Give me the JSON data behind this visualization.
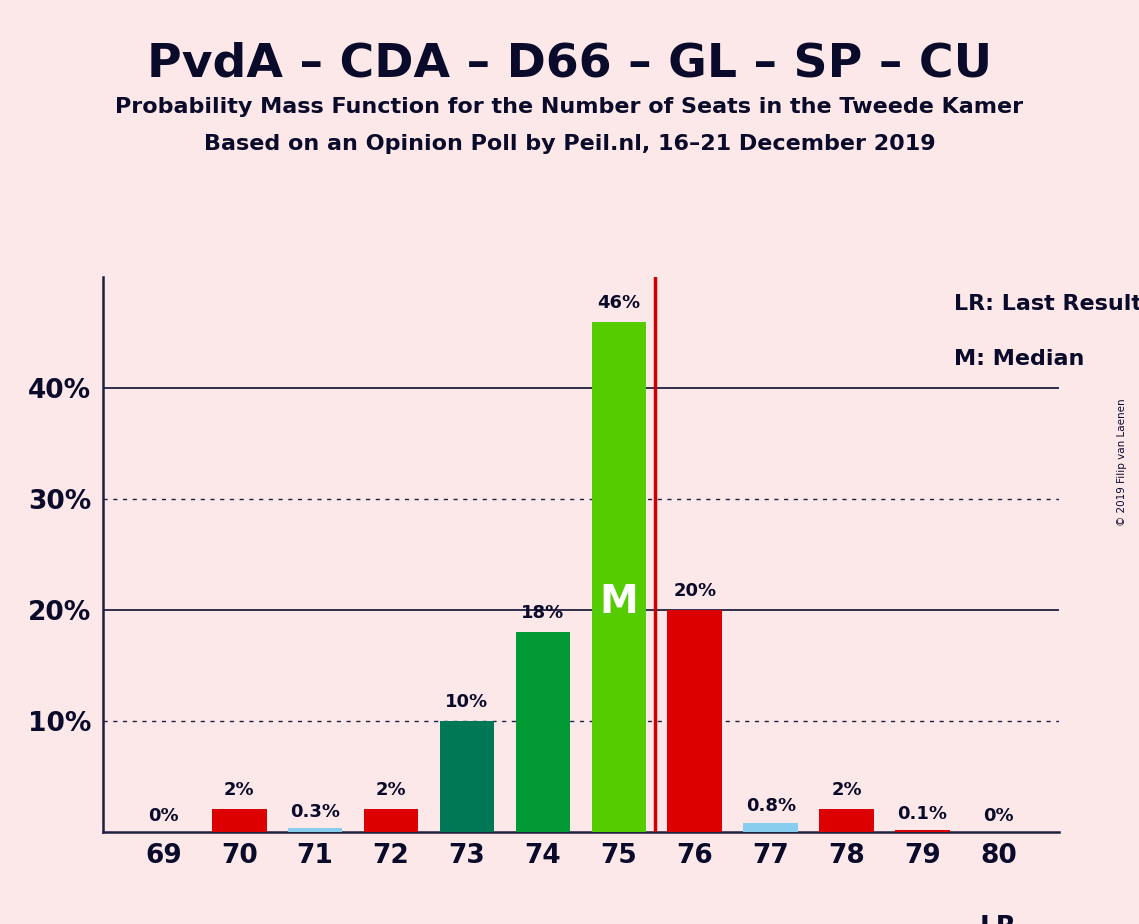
{
  "title": "PvdA – CDA – D66 – GL – SP – CU",
  "subtitle1": "Probability Mass Function for the Number of Seats in the Tweede Kamer",
  "subtitle2": "Based on an Opinion Poll by Peil.nl, 16–21 December 2019",
  "copyright": "© 2019 Filip van Laenen",
  "categories": [
    69,
    70,
    71,
    72,
    73,
    74,
    75,
    76,
    77,
    78,
    79,
    80
  ],
  "values": [
    0.0,
    2.0,
    0.3,
    2.0,
    10.0,
    18.0,
    46.0,
    20.0,
    0.8,
    2.0,
    0.1,
    0.0
  ],
  "bar_colors": [
    "#dd0000",
    "#dd0000",
    "#88ccee",
    "#dd0000",
    "#007755",
    "#009933",
    "#55cc00",
    "#dd0000",
    "#88ccee",
    "#dd0000",
    "#dd0000",
    "#dd0000"
  ],
  "labels": [
    "0%",
    "2%",
    "0.3%",
    "2%",
    "10%",
    "18%",
    "46%",
    "20%",
    "0.8%",
    "2%",
    "0.1%",
    "0%"
  ],
  "median_bar": 75,
  "last_result_x": 75.48,
  "legend_lr": "LR: Last Result",
  "legend_m": "M: Median",
  "lr_text": "LR",
  "background_color": "#fce8e8",
  "ytick_positions": [
    0,
    10,
    20,
    30,
    40
  ],
  "ytick_labels": [
    "",
    "10%",
    "20%",
    "30%",
    "40%"
  ],
  "solid_gridlines": [
    20,
    40
  ],
  "dotted_gridlines": [
    10,
    30
  ],
  "ylim": [
    0,
    50
  ],
  "xlim": [
    68.2,
    80.8
  ],
  "bar_width": 0.72
}
